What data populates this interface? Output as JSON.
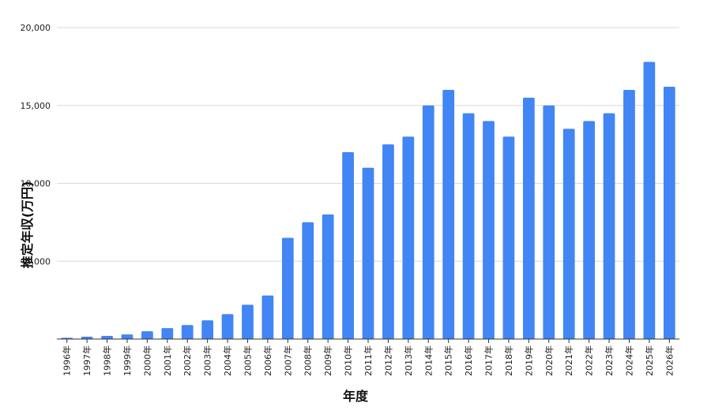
{
  "chart_data": {
    "type": "bar",
    "title": "",
    "xlabel": "年度",
    "ylabel": "推定年収(万円)",
    "ylim": [
      0,
      20000
    ],
    "yticks": [
      5000,
      10000,
      15000,
      20000
    ],
    "ytick_labels": [
      "5,000",
      "10,000",
      "15,000",
      "20,000"
    ],
    "grid": true,
    "bar_color": "#4285f4",
    "categories": [
      "1996年",
      "1997年",
      "1998年",
      "1999年",
      "2000年",
      "2001年",
      "2002年",
      "2003年",
      "2004年",
      "2005年",
      "2006年",
      "2007年",
      "2008年",
      "2009年",
      "2010年",
      "2011年",
      "2012年",
      "2013年",
      "2014年",
      "2015年",
      "2016年",
      "2017年",
      "2018年",
      "2019年",
      "2020年",
      "2021年",
      "2022年",
      "2023年",
      "2024年",
      "2025年",
      "2026年"
    ],
    "values": [
      80,
      150,
      200,
      300,
      500,
      700,
      900,
      1200,
      1600,
      2200,
      2800,
      6500,
      7500,
      8000,
      12000,
      11000,
      12500,
      13000,
      15000,
      16000,
      14500,
      14000,
      13000,
      15500,
      15000,
      13500,
      14000,
      14500,
      16000,
      17800,
      16200
    ]
  }
}
